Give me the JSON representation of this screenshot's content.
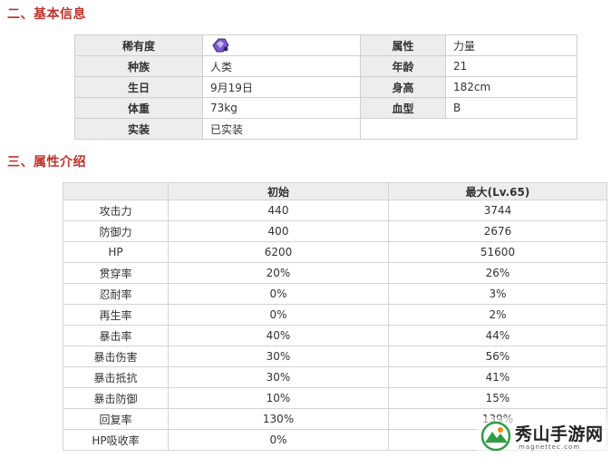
{
  "sections": {
    "basic_info_title": "二、基本信息",
    "attributes_title": "三、属性介绍"
  },
  "basic_info": {
    "rows": [
      {
        "label1": "稀有度",
        "value1": "",
        "label2": "属性",
        "value2": "力量"
      },
      {
        "label1": "种族",
        "value1": "人类",
        "label2": "年龄",
        "value2": "21"
      },
      {
        "label1": "生日",
        "value1": "9月19日",
        "label2": "身高",
        "value2": "182cm"
      },
      {
        "label1": "体重",
        "value1": "73kg",
        "label2": "血型",
        "value2": "B"
      },
      {
        "label1": "实装",
        "value1": "已实装",
        "label2": "",
        "value2": ""
      }
    ],
    "rarity_icon": "purple-crystal-icon"
  },
  "attributes": {
    "headers": [
      "",
      "初始",
      "最大(Lv.65)"
    ],
    "rows": [
      {
        "name": "攻击力",
        "initial": "440",
        "max": "3744"
      },
      {
        "name": "防御力",
        "initial": "400",
        "max": "2676"
      },
      {
        "name": "HP",
        "initial": "6200",
        "max": "51600"
      },
      {
        "name": "贯穿率",
        "initial": "20%",
        "max": "26%"
      },
      {
        "name": "忍耐率",
        "initial": "0%",
        "max": "3%"
      },
      {
        "name": "再生率",
        "initial": "0%",
        "max": "2%"
      },
      {
        "name": "暴击率",
        "initial": "40%",
        "max": "44%"
      },
      {
        "name": "暴击伤害",
        "initial": "30%",
        "max": "56%"
      },
      {
        "name": "暴击抵抗",
        "initial": "30%",
        "max": "41%"
      },
      {
        "name": "暴击防御",
        "initial": "10%",
        "max": "15%"
      },
      {
        "name": "回复率",
        "initial": "130%",
        "max": "139%"
      },
      {
        "name": "HP吸收率",
        "initial": "0%",
        "max": ""
      }
    ]
  },
  "watermark": {
    "name": "秀山手游网",
    "url": "magnettec.com"
  }
}
